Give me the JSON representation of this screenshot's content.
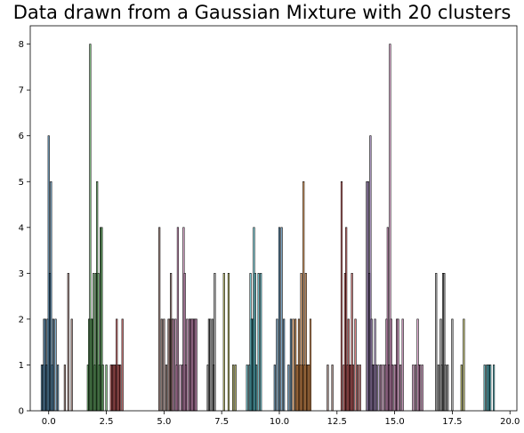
{
  "chart_data": {
    "type": "bar",
    "title": "Data drawn from a Gaussian Mixture with 20 clusters",
    "xlabel": "",
    "ylabel": "",
    "xlim": [
      -0.8,
      20.3
    ],
    "ylim": [
      0,
      8.4
    ],
    "grid": false,
    "legend": "none",
    "x_ticks": [
      0.0,
      2.5,
      5.0,
      7.5,
      10.0,
      12.5,
      15.0,
      17.5,
      20.0
    ],
    "x_tick_labels": [
      "0.0",
      "2.5",
      "5.0",
      "7.5",
      "10.0",
      "12.5",
      "15.0",
      "17.5",
      "20.0"
    ],
    "y_ticks": [
      0,
      1,
      2,
      3,
      4,
      5,
      6,
      7,
      8
    ],
    "y_tick_labels": [
      "0",
      "1",
      "2",
      "3",
      "4",
      "5",
      "6",
      "7",
      "8"
    ],
    "bar_width": 0.06,
    "series": [
      {
        "color": "#1f77b4",
        "x": [
          -0.3,
          -0.25,
          -0.2,
          -0.15,
          -0.1,
          -0.05,
          0.0,
          0.05,
          0.1,
          0.15,
          0.2,
          0.3,
          0.4
        ],
        "values": [
          1,
          1,
          2,
          2,
          1,
          2,
          6,
          3,
          5,
          1,
          2,
          2,
          1
        ]
      },
      {
        "color": "#8c564b",
        "x": [
          0.7,
          0.85,
          1.0
        ],
        "values": [
          1,
          3,
          2
        ]
      },
      {
        "color": "#2ca02c",
        "x": [
          1.7,
          1.75,
          1.8,
          1.85,
          1.9,
          1.95,
          2.0,
          2.05,
          2.1,
          2.15,
          2.2,
          2.25,
          2.3,
          2.35,
          2.5
        ],
        "values": [
          1,
          2,
          8,
          2,
          2,
          3,
          1,
          3,
          5,
          3,
          1,
          4,
          4,
          1,
          1
        ]
      },
      {
        "color": "#d62728",
        "x": [
          2.7,
          2.75,
          2.8,
          2.85,
          2.9,
          2.95,
          3.0,
          3.05,
          3.1,
          3.2
        ],
        "values": [
          1,
          1,
          1,
          1,
          1,
          2,
          1,
          1,
          1,
          2
        ]
      },
      {
        "color": "#8c564b",
        "x": [
          4.8,
          4.9,
          5.0,
          5.1,
          5.2,
          5.25,
          5.3,
          5.35
        ],
        "values": [
          4,
          2,
          2,
          1,
          2,
          2,
          3,
          2
        ]
      },
      {
        "color": "#e377c2",
        "x": [
          5.4,
          5.5,
          5.55,
          5.6,
          5.7,
          5.8,
          5.85,
          5.9,
          5.95,
          6.0,
          6.1,
          6.15,
          6.2,
          6.25,
          6.3,
          6.35,
          6.4
        ],
        "values": [
          2,
          2,
          1,
          4,
          1,
          1,
          4,
          3,
          1,
          2,
          2,
          2,
          2,
          2,
          2,
          2,
          2
        ]
      },
      {
        "color": "#7f7f7f",
        "x": [
          6.9,
          6.95,
          7.0,
          7.1,
          7.15,
          7.2
        ],
        "values": [
          1,
          2,
          2,
          2,
          1,
          3
        ]
      },
      {
        "color": "#bcbd22",
        "x": [
          7.6,
          7.8,
          8.0,
          8.1
        ],
        "values": [
          3,
          3,
          1,
          1
        ]
      },
      {
        "color": "#17becf",
        "x": [
          8.6,
          8.7,
          8.75,
          8.8,
          8.85,
          8.9,
          8.95,
          9.0,
          9.1,
          9.2
        ],
        "values": [
          1,
          1,
          3,
          2,
          2,
          4,
          3,
          1,
          3,
          3
        ]
      },
      {
        "color": "#1f77b4",
        "x": [
          9.8,
          9.9,
          10.0,
          10.1,
          10.2,
          10.4,
          10.5
        ],
        "values": [
          1,
          2,
          4,
          4,
          2,
          1,
          2
        ]
      },
      {
        "color": "#ff7f0e",
        "x": [
          10.6,
          10.7,
          10.75,
          10.8,
          10.85,
          10.9,
          10.95,
          11.0,
          11.05,
          11.1,
          11.15,
          11.2,
          11.25,
          11.3,
          11.35
        ],
        "values": [
          2,
          2,
          1,
          1,
          2,
          1,
          3,
          1,
          5,
          1,
          3,
          1,
          1,
          1,
          2
        ]
      },
      {
        "color": "#8c564b",
        "x": [
          12.1,
          12.3
        ],
        "values": [
          1,
          1
        ]
      },
      {
        "color": "#d62728",
        "x": [
          12.7,
          12.8,
          12.85,
          12.9,
          12.95,
          13.0,
          13.05,
          13.1,
          13.15,
          13.2,
          13.3,
          13.4,
          13.5
        ],
        "values": [
          5,
          1,
          3,
          4,
          1,
          2,
          1,
          1,
          3,
          1,
          2,
          1,
          1
        ]
      },
      {
        "color": "#9467bd",
        "x": [
          13.8,
          13.85,
          13.9,
          13.95,
          14.0,
          14.05,
          14.1,
          14.15,
          14.2,
          14.3
        ],
        "values": [
          5,
          5,
          3,
          6,
          2,
          1,
          1,
          2,
          1,
          1
        ]
      },
      {
        "color": "#e377c2",
        "x": [
          14.4,
          14.5,
          14.6,
          14.65,
          14.7,
          14.75,
          14.8,
          14.85,
          14.9,
          15.0,
          15.05,
          15.1,
          15.15,
          15.25,
          15.35
        ],
        "values": [
          1,
          1,
          1,
          2,
          4,
          1,
          8,
          2,
          1,
          1,
          1,
          2,
          2,
          1,
          2
        ]
      },
      {
        "color": "#e377c2",
        "x": [
          15.8,
          15.9,
          16.0,
          16.05,
          16.1,
          16.2
        ],
        "values": [
          1,
          1,
          2,
          1,
          1,
          1
        ]
      },
      {
        "color": "#7f7f7f",
        "x": [
          16.8,
          16.9,
          17.0,
          17.05,
          17.1,
          17.15,
          17.2,
          17.3,
          17.5
        ],
        "values": [
          3,
          1,
          2,
          1,
          3,
          3,
          1,
          1,
          2
        ]
      },
      {
        "color": "#bcbd22",
        "x": [
          17.9,
          18.0
        ],
        "values": [
          1,
          2
        ]
      },
      {
        "color": "#17becf",
        "x": [
          18.9,
          19.0,
          19.05,
          19.1,
          19.15,
          19.3
        ],
        "values": [
          1,
          1,
          1,
          1,
          1,
          1
        ]
      }
    ]
  }
}
